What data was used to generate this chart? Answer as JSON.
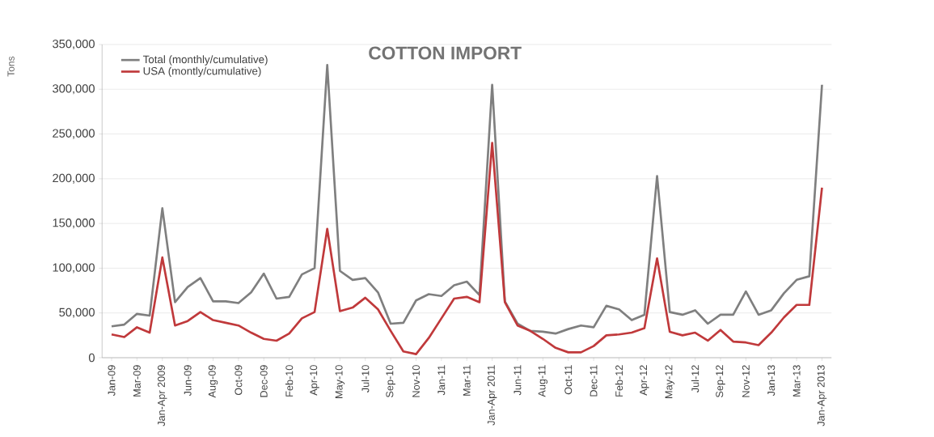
{
  "chart_data": {
    "type": "line",
    "title": "COTTON IMPORT",
    "ylabel": "Tons",
    "categories": [
      "Jan-09",
      null,
      "Mar-09",
      null,
      "Jan-Apr 2009",
      null,
      "Jun-09",
      null,
      "Aug-09",
      null,
      "Oct-09",
      null,
      "Dec-09",
      null,
      "Feb-10",
      null,
      "Apr-10",
      null,
      "May-10",
      null,
      "Jul-10",
      null,
      "Sep-10",
      null,
      "Nov-10",
      null,
      "Jan-11",
      null,
      "Mar-11",
      null,
      "Jan-Apr 2011",
      null,
      "Jun-11",
      null,
      "Aug-11",
      null,
      "Oct-11",
      null,
      "Dec-11",
      null,
      "Feb-12",
      null,
      "Apr-12",
      null,
      "May-12",
      null,
      "Jul-12",
      null,
      "Sep-12",
      null,
      "Nov-12",
      null,
      "Jan-13",
      null,
      "Mar-13",
      null,
      "Jan-Apr 2013"
    ],
    "series": [
      {
        "name": "Total (monthly/cumulative)",
        "color": "#7f7f7f",
        "values": [
          35000,
          37000,
          49000,
          47000,
          167000,
          62000,
          79000,
          89000,
          63000,
          63000,
          61000,
          73000,
          94000,
          66000,
          68000,
          93000,
          100000,
          327000,
          97000,
          87000,
          89000,
          73000,
          38000,
          39000,
          64000,
          71000,
          69000,
          81000,
          85000,
          70000,
          305000,
          63000,
          38000,
          30000,
          29000,
          27000,
          32000,
          36000,
          34000,
          58000,
          54000,
          42000,
          48000,
          203000,
          51000,
          48000,
          53000,
          38000,
          48000,
          48000,
          74000,
          48000,
          53000,
          72000,
          87000,
          91000,
          305000
        ]
      },
      {
        "name": "USA (montly/cumulative)",
        "color": "#c0393b",
        "values": [
          26000,
          23000,
          34000,
          28000,
          112000,
          36000,
          41000,
          51000,
          42000,
          39000,
          36000,
          28000,
          21000,
          19000,
          27000,
          44000,
          51000,
          144000,
          52000,
          56000,
          67000,
          54000,
          30000,
          7000,
          4000,
          22000,
          44000,
          66000,
          68000,
          62000,
          240000,
          62000,
          36000,
          30000,
          21000,
          11000,
          6000,
          6000,
          13000,
          25000,
          26000,
          28000,
          33000,
          111000,
          29000,
          25000,
          28000,
          19000,
          31000,
          18000,
          17000,
          14000,
          28000,
          45000,
          59000,
          59000,
          190000
        ]
      }
    ],
    "ylim": [
      0,
      350000
    ],
    "yticks": [
      0,
      {
        "value": 50000,
        "label": "50,000"
      },
      {
        "value": 100000,
        "label": "100,000"
      },
      {
        "value": 150000,
        "label": "150,000"
      },
      {
        "value": 200000,
        "label": "200,000"
      },
      {
        "value": 250000,
        "label": "250,000"
      },
      {
        "value": 300000,
        "label": "300,000"
      },
      {
        "value": 350000,
        "label": "350,000"
      }
    ],
    "grid": "y",
    "legend": "top left",
    "marker": "none"
  }
}
